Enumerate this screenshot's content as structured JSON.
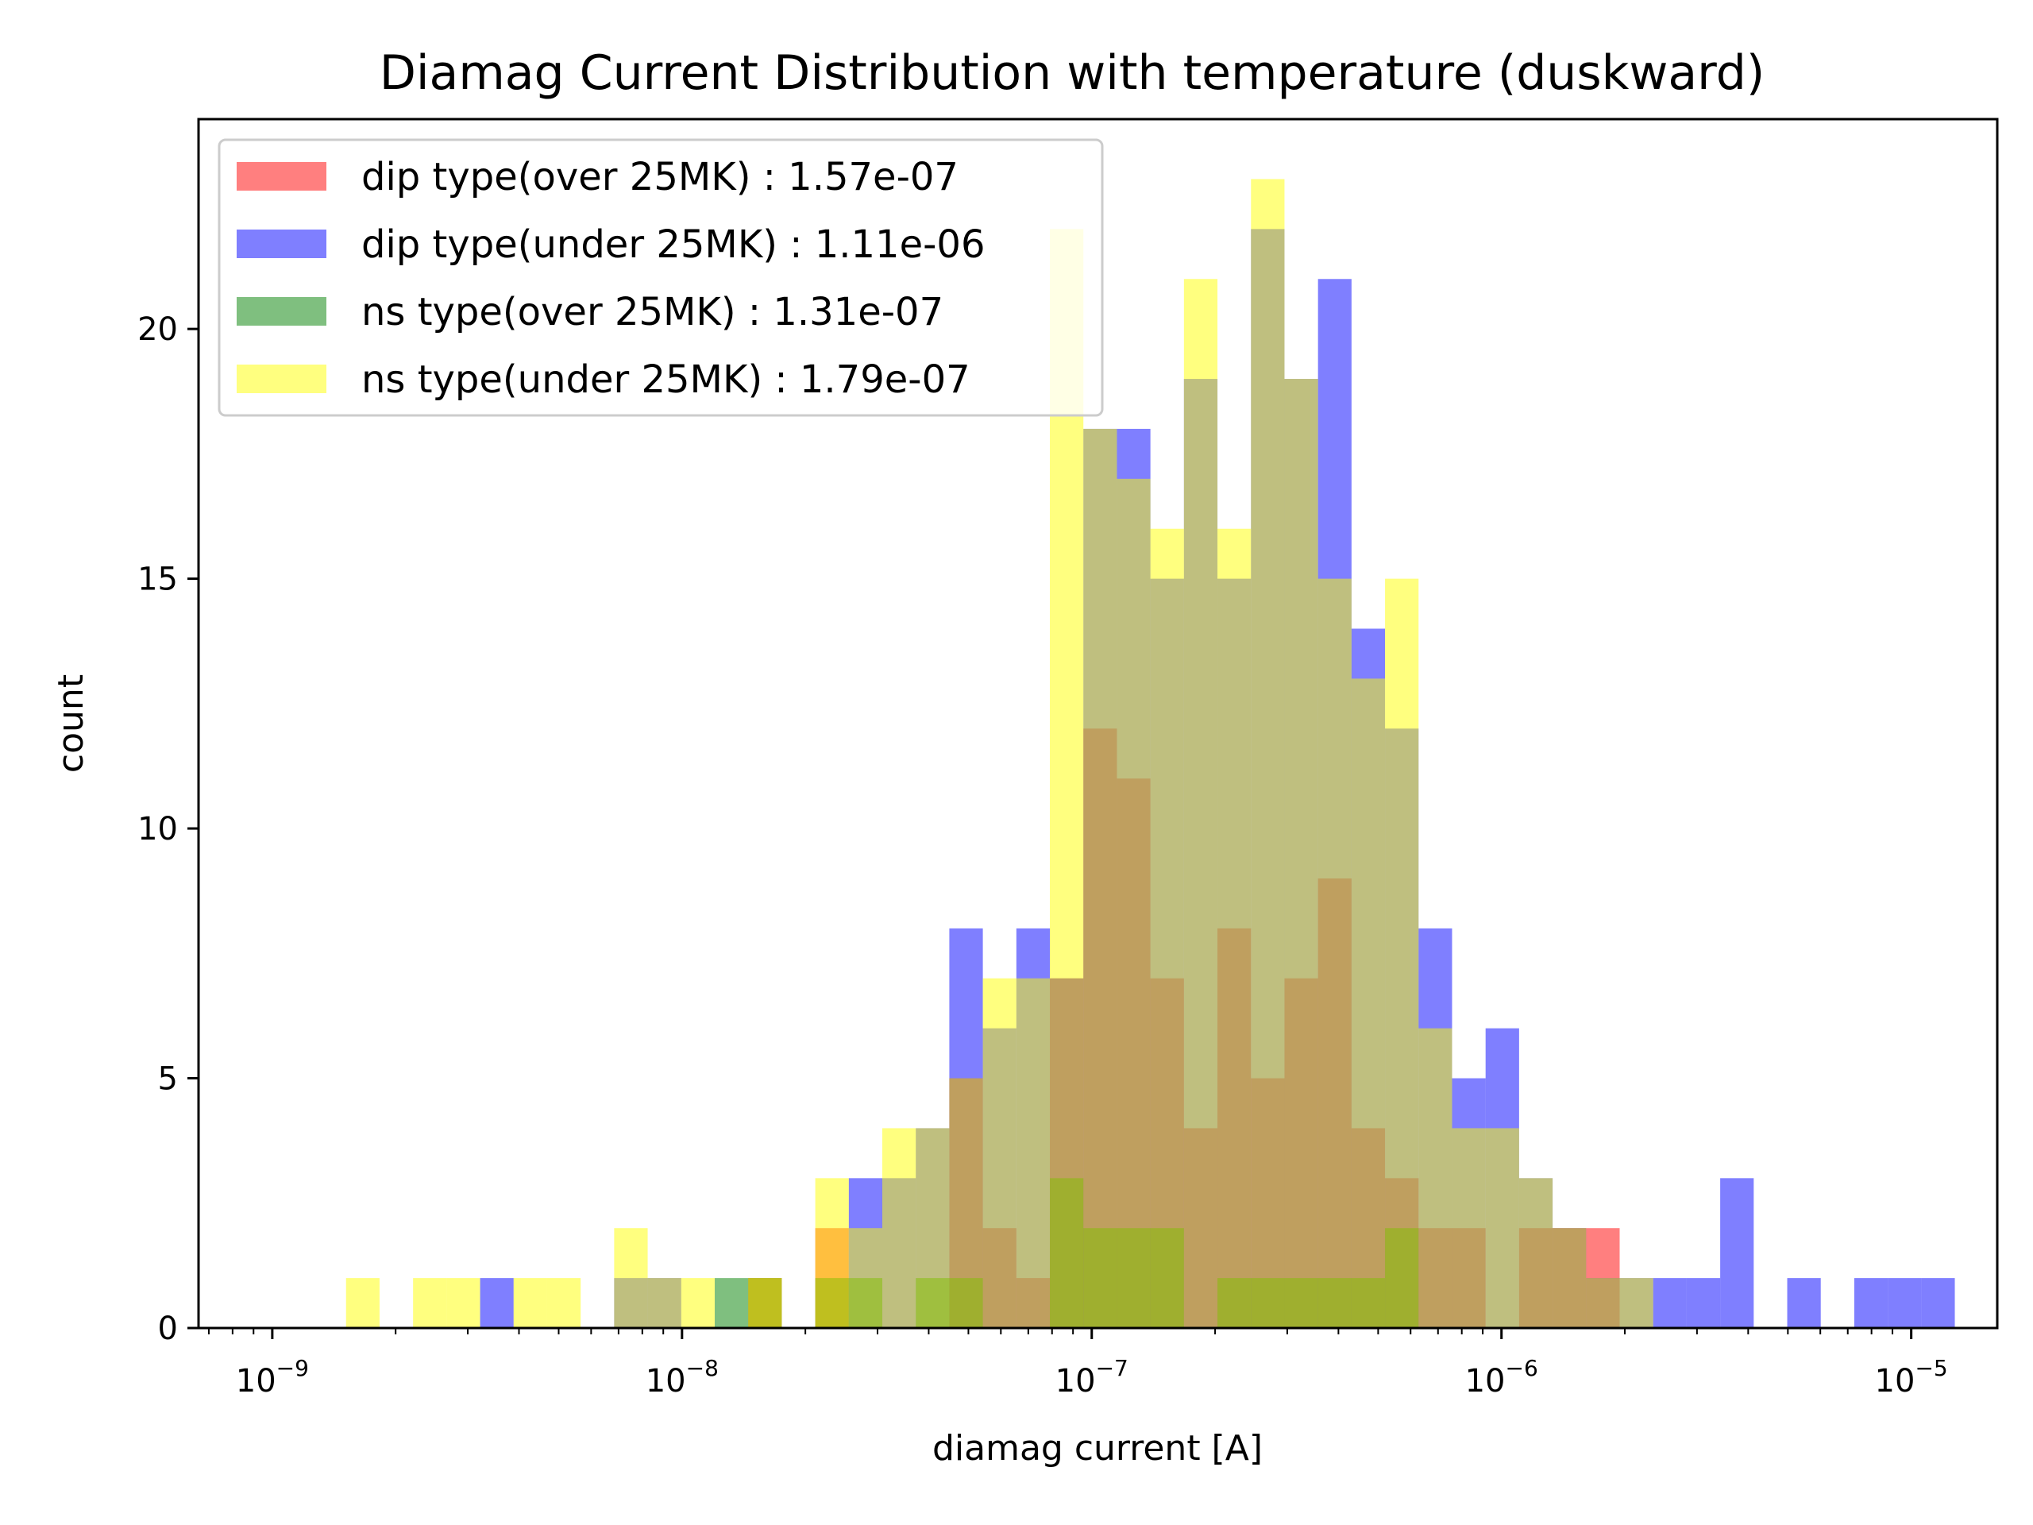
{
  "chart_data": {
    "type": "bar",
    "title": "Diamag Current Distribution with temperature (duskward)",
    "xlabel": "diamag current [A]",
    "ylabel": "count",
    "xscale": "log",
    "xlim_log10": [
      -9.18,
      -4.79
    ],
    "ylim": [
      0,
      24.2
    ],
    "xticks": [
      {
        "base": "10",
        "exp": "−9"
      },
      {
        "base": "10",
        "exp": "−8"
      },
      {
        "base": "10",
        "exp": "−7"
      },
      {
        "base": "10",
        "exp": "−6"
      },
      {
        "base": "10",
        "exp": "−5"
      }
    ],
    "yticks": [
      0,
      5,
      10,
      15,
      20
    ],
    "grid": false,
    "legend_position": "top-left",
    "bin_log10_start": -8.82,
    "bin_log10_width": 0.0818,
    "series": [
      {
        "name": "dip type(over 25MK) : 1.57e-07",
        "color": "#ff0000",
        "alpha": 0.5,
        "counts": [
          0,
          0,
          0,
          0,
          0,
          0,
          0,
          0,
          0,
          0,
          0,
          0,
          1,
          0,
          2,
          0,
          0,
          0,
          5,
          2,
          1,
          7,
          12,
          11,
          7,
          4,
          8,
          5,
          7,
          9,
          4,
          3,
          2,
          2,
          0,
          2,
          2,
          2,
          0,
          0,
          0,
          0,
          0,
          0,
          0,
          0,
          0,
          0,
          0,
          0
        ]
      },
      {
        "name": "dip type(under 25MK) : 1.11e-06",
        "color": "#0000ff",
        "alpha": 0.5,
        "counts": [
          0,
          0,
          0,
          0,
          1,
          0,
          0,
          0,
          1,
          1,
          0,
          0,
          0,
          0,
          0,
          3,
          3,
          4,
          8,
          6,
          8,
          7,
          18,
          18,
          15,
          19,
          15,
          22,
          19,
          21,
          14,
          12,
          8,
          5,
          6,
          3,
          2,
          1,
          1,
          1,
          1,
          3,
          0,
          1,
          0,
          1,
          1,
          1,
          0,
          0
        ]
      },
      {
        "name": "ns type(over 25MK) : 1.31e-07",
        "color": "#008000",
        "alpha": 0.5,
        "counts": [
          0,
          0,
          0,
          0,
          0,
          0,
          0,
          0,
          0,
          0,
          0,
          1,
          1,
          0,
          1,
          1,
          0,
          1,
          1,
          0,
          0,
          3,
          2,
          2,
          2,
          0,
          1,
          1,
          1,
          1,
          1,
          2,
          0,
          0,
          0,
          0,
          0,
          0,
          0,
          0,
          0,
          0,
          0,
          0,
          0,
          0,
          0,
          0,
          0,
          0
        ]
      },
      {
        "name": "ns type(under 25MK) : 1.79e-07",
        "color": "#ffff00",
        "alpha": 0.5,
        "counts": [
          1,
          0,
          1,
          1,
          0,
          1,
          1,
          0,
          2,
          1,
          1,
          0,
          1,
          0,
          3,
          2,
          4,
          4,
          5,
          7,
          7,
          22,
          18,
          17,
          16,
          21,
          16,
          23,
          19,
          15,
          13,
          15,
          6,
          4,
          4,
          3,
          2,
          1,
          1,
          0,
          0,
          0,
          0,
          0,
          0,
          0,
          0,
          0,
          0,
          0
        ]
      }
    ]
  }
}
